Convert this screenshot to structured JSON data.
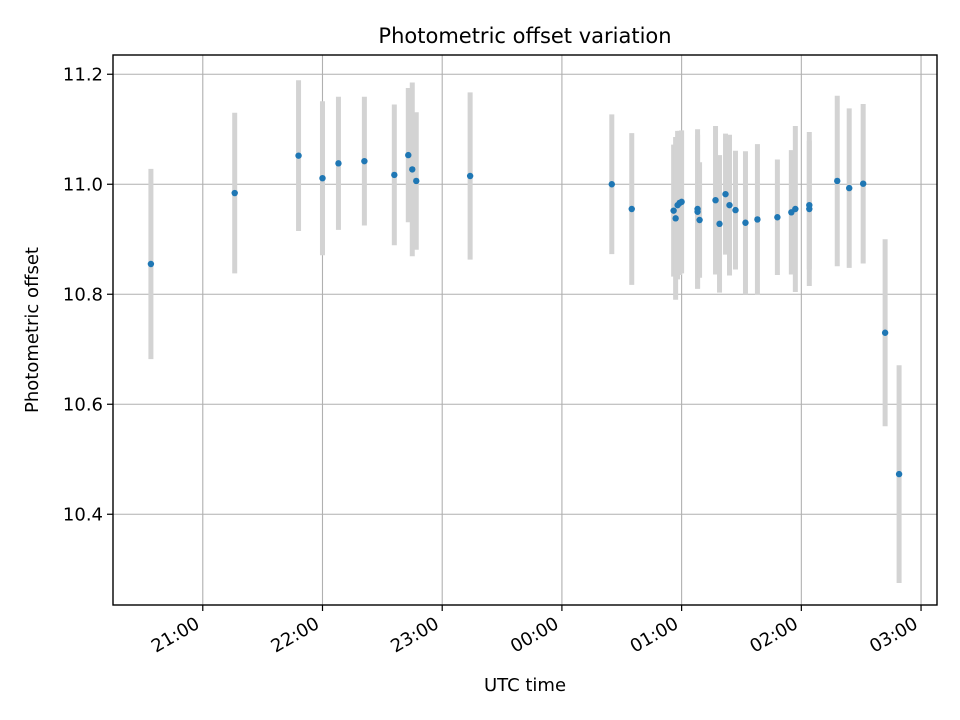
{
  "chart_data": {
    "type": "scatter",
    "title": "Photometric offset variation",
    "xlabel": "UTC time",
    "ylabel": "Photometric offset",
    "x_unit": "hours",
    "xlim": [
      "20:15",
      "03:08"
    ],
    "ylim": [
      10.235,
      11.235
    ],
    "x_ticks": [
      "21:00",
      "22:00",
      "23:00",
      "00:00",
      "01:00",
      "02:00",
      "03:00"
    ],
    "y_ticks": [
      "10.4",
      "10.6",
      "10.8",
      "11.0",
      "11.2"
    ],
    "y_tick_values": [
      10.4,
      10.6,
      10.8,
      11.0,
      11.2
    ],
    "grid": true,
    "colors": {
      "point": "#1f77b4",
      "errorbar": "#d3d3d3",
      "grid": "#b0b0b0"
    },
    "series": [
      {
        "points": [
          {
            "x": "20:34",
            "y": 10.855,
            "err": 0.173
          },
          {
            "x": "21:16",
            "y": 10.984,
            "err": 0.146
          },
          {
            "x": "21:48",
            "y": 11.052,
            "err": 0.137
          },
          {
            "x": "22:00",
            "y": 11.011,
            "err": 0.14
          },
          {
            "x": "22:08",
            "y": 11.038,
            "err": 0.121
          },
          {
            "x": "22:21",
            "y": 11.042,
            "err": 0.117
          },
          {
            "x": "22:36",
            "y": 11.017,
            "err": 0.128
          },
          {
            "x": "22:43",
            "y": 11.053,
            "err": 0.122
          },
          {
            "x": "22:45",
            "y": 11.027,
            "err": 0.158
          },
          {
            "x": "22:47",
            "y": 11.006,
            "err": 0.125
          },
          {
            "x": "23:14",
            "y": 11.015,
            "err": 0.152
          },
          {
            "x": "00:25",
            "y": 11.0,
            "err": 0.127
          },
          {
            "x": "00:35",
            "y": 10.955,
            "err": 0.138
          },
          {
            "x": "00:56",
            "y": 10.952,
            "err": 0.12
          },
          {
            "x": "00:57",
            "y": 10.938,
            "err": 0.148
          },
          {
            "x": "00:58",
            "y": 10.962,
            "err": 0.135
          },
          {
            "x": "00:59",
            "y": 10.966,
            "err": 0.131
          },
          {
            "x": "01:00",
            "y": 10.968,
            "err": 0.13
          },
          {
            "x": "01:08",
            "y": 10.955,
            "err": 0.145
          },
          {
            "x": "01:08",
            "y": 10.95,
            "err": 0.14
          },
          {
            "x": "01:09",
            "y": 10.935,
            "err": 0.105
          },
          {
            "x": "01:17",
            "y": 10.971,
            "err": 0.135
          },
          {
            "x": "01:19",
            "y": 10.928,
            "err": 0.125
          },
          {
            "x": "01:22",
            "y": 10.982,
            "err": 0.11
          },
          {
            "x": "01:24",
            "y": 10.962,
            "err": 0.128
          },
          {
            "x": "01:27",
            "y": 10.953,
            "err": 0.108
          },
          {
            "x": "01:32",
            "y": 10.93,
            "err": 0.13
          },
          {
            "x": "01:38",
            "y": 10.936,
            "err": 0.137
          },
          {
            "x": "01:48",
            "y": 10.94,
            "err": 0.105
          },
          {
            "x": "01:55",
            "y": 10.949,
            "err": 0.113
          },
          {
            "x": "01:57",
            "y": 10.955,
            "err": 0.151
          },
          {
            "x": "02:04",
            "y": 10.962,
            "err": 0.117
          },
          {
            "x": "02:04",
            "y": 10.955,
            "err": 0.14
          },
          {
            "x": "02:18",
            "y": 11.006,
            "err": 0.155
          },
          {
            "x": "02:24",
            "y": 10.993,
            "err": 0.145
          },
          {
            "x": "02:31",
            "y": 11.001,
            "err": 0.145
          },
          {
            "x": "02:42",
            "y": 10.73,
            "err": 0.17
          },
          {
            "x": "02:49",
            "y": 10.473,
            "err": 0.198
          }
        ]
      }
    ]
  }
}
